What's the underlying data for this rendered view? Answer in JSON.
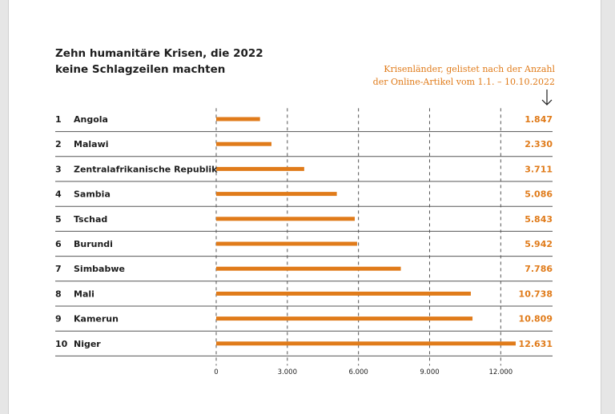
{
  "chart_data": {
    "type": "bar",
    "orientation": "horizontal",
    "title_lines": [
      "Zehn humanitäre Krisen, die 2022",
      "keine Schlagzeilen machten"
    ],
    "note_lines": [
      "Krisenländer, gelistet nach der Anzahl",
      "der Online-Artikel vom 1.1. – 10.10.2022"
    ],
    "arrow_icon": "arrow-down-icon",
    "ranks": [
      "1",
      "2",
      "3",
      "4",
      "5",
      "6",
      "7",
      "8",
      "9",
      "10"
    ],
    "categories": [
      "Angola",
      "Malawi",
      "Zentralafrikanische Republik",
      "Sambia",
      "Tschad",
      "Burundi",
      "Simbabwe",
      "Mali",
      "Kamerun",
      "Niger"
    ],
    "values": [
      1847,
      2330,
      3711,
      5086,
      5843,
      5942,
      7786,
      10738,
      10809,
      12631
    ],
    "value_labels": [
      "1.847",
      "2.330",
      "3.711",
      "5.086",
      "5.843",
      "5.942",
      "7.786",
      "10.738",
      "10.809",
      "12.631"
    ],
    "xlim": [
      0,
      12631
    ],
    "xticks": [
      0,
      3000,
      6000,
      9000,
      12000
    ],
    "xtick_labels": [
      "0",
      "3.000",
      "6.000",
      "9.000",
      "12.000"
    ],
    "grid": "vertical-dashed",
    "bar_color": "#e07b1a",
    "text_color": "#1e1e1e",
    "rule_color": "#555555"
  }
}
